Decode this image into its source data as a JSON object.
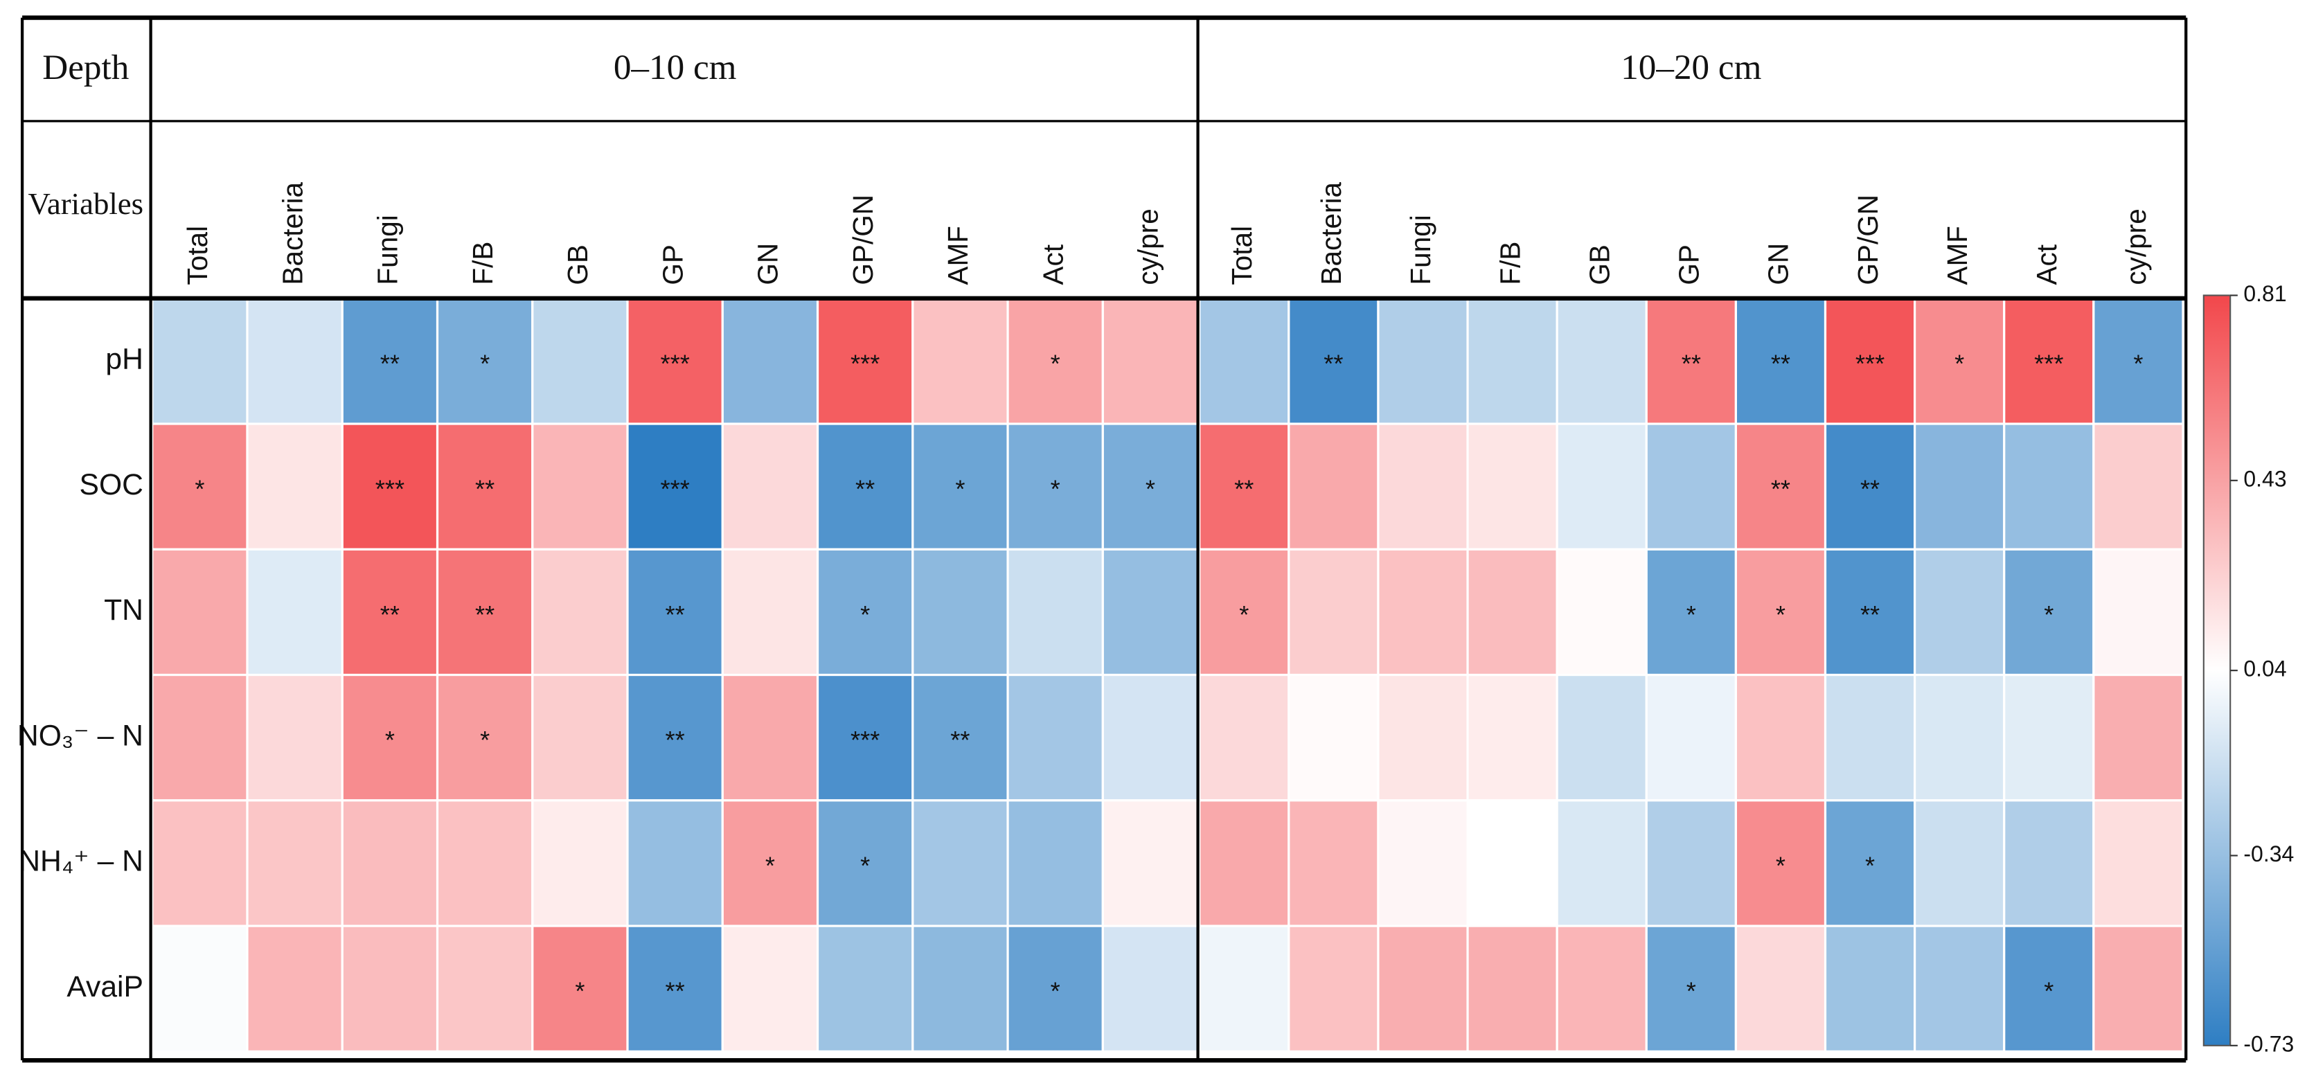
{
  "chart_data": {
    "type": "heatmap",
    "header_labels": [
      "Depth",
      "Variables"
    ],
    "column_groups": [
      {
        "name": "0–10 cm",
        "columns": [
          "Total",
          "Bacteria",
          "Fungi",
          "F/B",
          "GB",
          "GP",
          "GN",
          "GP/GN",
          "AMF",
          "Act",
          "cy/pre"
        ]
      },
      {
        "name": "10–20 cm",
        "columns": [
          "Total",
          "Bacteria",
          "Fungi",
          "F/B",
          "GB",
          "GP",
          "GN",
          "GP/GN",
          "AMF",
          "Act",
          "cy/pre"
        ]
      }
    ],
    "rows": [
      "pH",
      "SOC",
      "TN",
      "NO₃⁻ – N",
      "NH₄⁺ – N",
      "AvaiP"
    ],
    "values": [
      [
        -0.2,
        -0.12,
        -0.55,
        -0.45,
        -0.2,
        0.7,
        -0.4,
        0.72,
        0.3,
        0.42,
        0.35,
        -0.3,
        -0.65,
        -0.25,
        -0.2,
        -0.15,
        0.6,
        -0.6,
        0.75,
        0.52,
        0.72,
        -0.52
      ],
      [
        0.55,
        0.15,
        0.75,
        0.65,
        0.35,
        -0.73,
        0.2,
        -0.6,
        -0.5,
        -0.45,
        -0.45,
        0.65,
        0.4,
        0.2,
        0.15,
        -0.08,
        -0.3,
        0.55,
        -0.65,
        -0.4,
        -0.35,
        0.25
      ],
      [
        0.4,
        -0.08,
        0.65,
        0.62,
        0.25,
        -0.58,
        0.15,
        -0.45,
        -0.38,
        -0.15,
        -0.35,
        0.45,
        0.25,
        0.3,
        0.32,
        0.06,
        -0.5,
        0.45,
        -0.6,
        -0.25,
        -0.48,
        0.08
      ],
      [
        0.4,
        0.2,
        0.52,
        0.45,
        0.25,
        -0.58,
        0.4,
        -0.62,
        -0.5,
        -0.3,
        -0.12,
        0.2,
        0.06,
        0.15,
        0.12,
        -0.15,
        -0.03,
        0.3,
        -0.15,
        -0.1,
        -0.07,
        0.38
      ],
      [
        0.3,
        0.28,
        0.32,
        0.3,
        0.12,
        -0.35,
        0.45,
        -0.48,
        -0.3,
        -0.35,
        0.1,
        0.4,
        0.35,
        0.08,
        0.04,
        -0.1,
        -0.25,
        0.52,
        -0.5,
        -0.15,
        -0.25,
        0.18
      ],
      [
        0.02,
        0.35,
        0.32,
        0.28,
        0.55,
        -0.58,
        0.12,
        -0.32,
        -0.38,
        -0.52,
        -0.12,
        -0.02,
        0.3,
        0.38,
        0.38,
        0.35,
        -0.5,
        0.2,
        -0.32,
        -0.3,
        -0.58,
        0.38
      ]
    ],
    "stars": [
      [
        null,
        null,
        "**",
        "*",
        null,
        "***",
        null,
        "***",
        null,
        "*",
        null,
        null,
        "**",
        null,
        null,
        null,
        "**",
        "**",
        "***",
        "*",
        "***",
        "*"
      ],
      [
        "*",
        null,
        "***",
        "**",
        null,
        "***",
        null,
        "**",
        "*",
        "*",
        "*",
        "**",
        null,
        null,
        null,
        null,
        null,
        "**",
        "**",
        null,
        null,
        null
      ],
      [
        null,
        null,
        "**",
        "**",
        null,
        "**",
        null,
        "*",
        null,
        null,
        null,
        "*",
        null,
        null,
        null,
        null,
        "*",
        "*",
        "**",
        null,
        "*",
        null
      ],
      [
        null,
        null,
        "*",
        "*",
        null,
        "**",
        null,
        "***",
        "**",
        null,
        null,
        null,
        null,
        null,
        null,
        null,
        null,
        null,
        null,
        null,
        null,
        null
      ],
      [
        null,
        null,
        null,
        null,
        null,
        null,
        "*",
        "*",
        null,
        null,
        null,
        null,
        null,
        null,
        null,
        null,
        null,
        "*",
        "*",
        null,
        null,
        null
      ],
      [
        null,
        null,
        null,
        null,
        "*",
        "**",
        null,
        null,
        null,
        "*",
        null,
        null,
        null,
        null,
        null,
        null,
        "*",
        null,
        null,
        null,
        "*",
        null
      ]
    ],
    "zlim": [
      -0.73,
      0.81
    ],
    "zticks": [
      0.81,
      0.43,
      0.04,
      -0.34,
      -0.73
    ],
    "colors": {
      "low": "#2e7ec3",
      "mid": "#ffffff",
      "high": "#f2474b"
    }
  }
}
